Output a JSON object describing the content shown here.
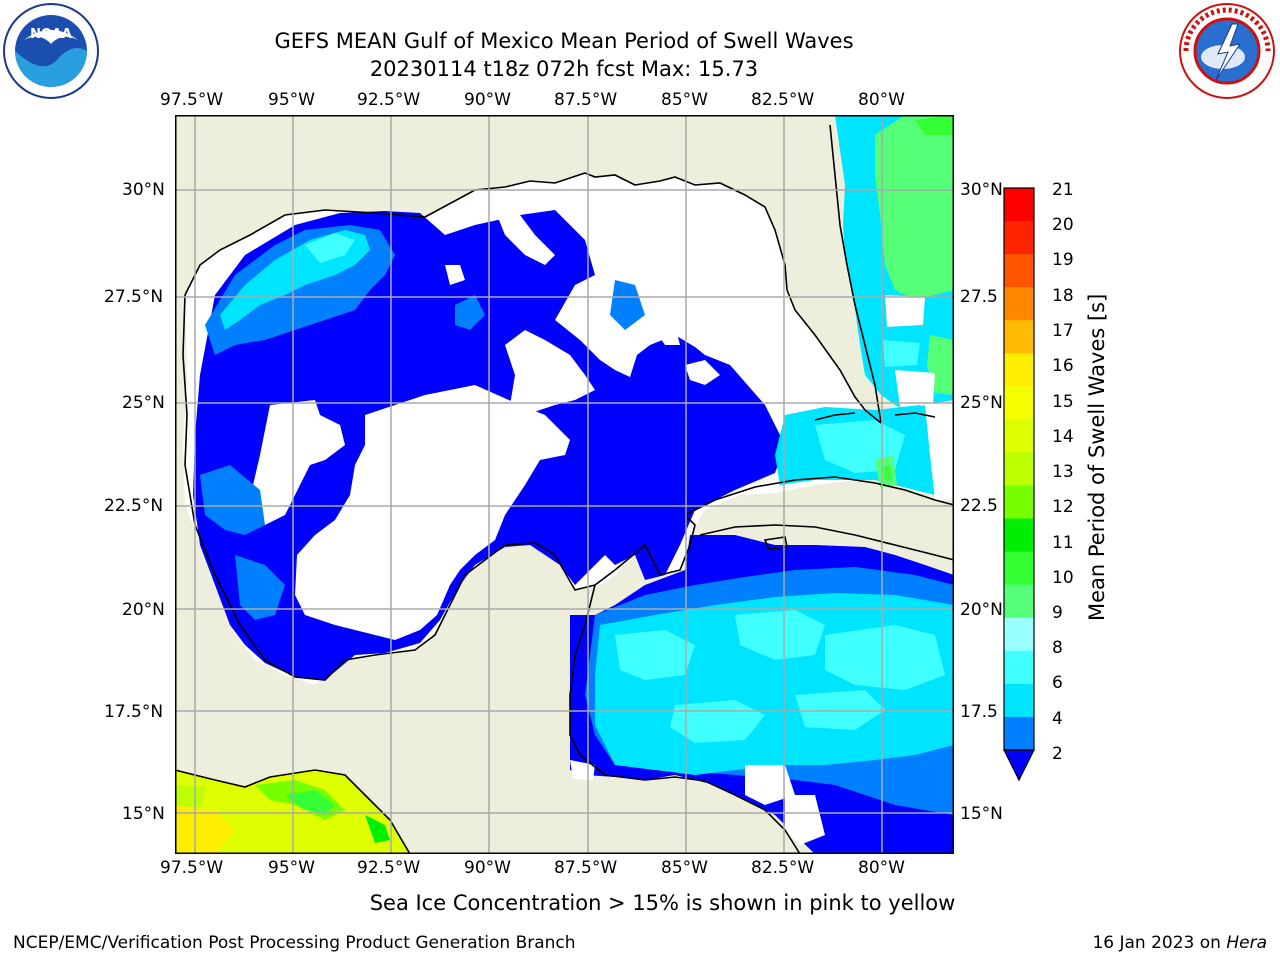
{
  "title": {
    "line1": "GEFS MEAN Gulf of Mexico Mean Period of Swell Waves",
    "line2": "20230114 t18z 072h fcst   Max: 15.73"
  },
  "logos": {
    "left": "noaa-logo",
    "right": "nws-logo"
  },
  "map": {
    "lon_labels": [
      "97.5°W",
      "95°W",
      "92.5°W",
      "90°W",
      "87.5°W",
      "85°W",
      "82.5°W",
      "80°W"
    ],
    "lat_labels_left": [
      "30°N",
      "27.5°N",
      "25°N",
      "22.5°N",
      "20°N",
      "17.5°N",
      "15°N"
    ],
    "lat_labels_right": [
      "30°N",
      "27.5",
      "25°N",
      "22.5",
      "20°N",
      "17.5",
      "15°N"
    ],
    "extent": {
      "lon_min": -98.0,
      "lon_max": -78.5,
      "lat_min": 14.0,
      "lat_max": 31.8
    }
  },
  "colorbar": {
    "label": "Mean Period of Swell Waves [s]",
    "ticks": [
      "2",
      "4",
      "6",
      "8",
      "9",
      "10",
      "11",
      "12",
      "13",
      "14",
      "15",
      "16",
      "17",
      "18",
      "19",
      "20",
      "21"
    ],
    "colors": [
      "#0000ff",
      "#0080ff",
      "#00e5ff",
      "#40ffff",
      "#99ffff",
      "#55ff77",
      "#33ff33",
      "#00ee00",
      "#77ff00",
      "#bbff00",
      "#ddff00",
      "#f5ff00",
      "#ffee00",
      "#ffbb00",
      "#ff8800",
      "#ff5500",
      "#ff2200",
      "#ff0000"
    ]
  },
  "caption": "Sea Ice Concentration > 15% is shown in pink to yellow",
  "footer": {
    "left": "NCEP/EMC/Verification Post Processing Product Generation Branch",
    "date": "16 Jan 2023 on",
    "host": "Hera"
  }
}
